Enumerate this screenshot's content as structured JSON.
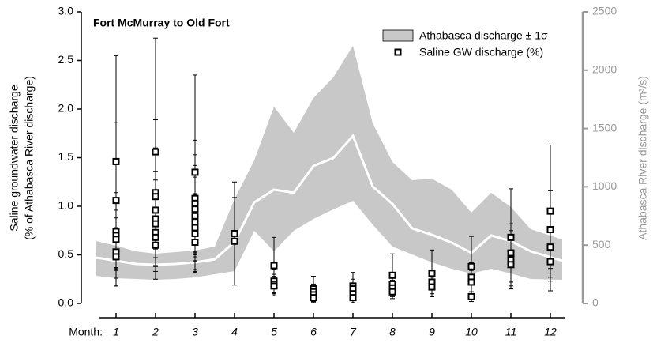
{
  "chart_data": {
    "type": "band-errorbar",
    "title": "Fort McMurray to Old Fort",
    "ylabel": [
      "Saline groundwater discharge",
      "(% of Athabasca River discharge)"
    ],
    "y2label": "Athabasca River discharge (m³/s)",
    "xlabel": "Month:",
    "xlim": [
      0.12,
      12.82
    ],
    "xticks": [
      1,
      2,
      3,
      4,
      5,
      6,
      7,
      8,
      9,
      10,
      11,
      12
    ],
    "ylim": [
      0,
      3.0
    ],
    "yticks": [
      {
        "value": 0,
        "label": "0.0"
      },
      0.5,
      {
        "value": 1,
        "label": "1.0"
      },
      1.5,
      {
        "value": 2,
        "label": "2.0"
      },
      2.5,
      {
        "value": 3,
        "label": "3.0"
      }
    ],
    "y2lim": [
      0,
      2500
    ],
    "y2ticks": [
      0,
      500,
      1000,
      1500,
      2000,
      2500
    ],
    "series": [
      {
        "name": "Athabasca discharge ± 1σ",
        "color": "#c8c8c8",
        "line_color": "#ffffff",
        "axis": "y2",
        "x": [
          0.5,
          1,
          1.5,
          2,
          2.5,
          3,
          3.5,
          4,
          4.5,
          5,
          5.5,
          6,
          6.5,
          7,
          7.5,
          8,
          8.5,
          9,
          9.5,
          10,
          10.5,
          11,
          11.5,
          12.3
        ],
        "values": [
          393,
          366,
          339,
          332,
          339,
          352,
          379,
          528,
          867,
          976,
          949,
          1179,
          1247,
          1436,
          1003,
          854,
          644,
          589,
          522,
          434,
          583,
          535,
          447,
          366
        ],
        "upper": [
          535,
          495,
          447,
          427,
          440,
          454,
          488,
          894,
          1226,
          1687,
          1463,
          1762,
          1938,
          2209,
          1545,
          1213,
          1057,
          1070,
          976,
          779,
          949,
          827,
          637,
          549
        ],
        "lower": [
          237,
          217,
          210,
          203,
          210,
          224,
          251,
          278,
          623,
          447,
          623,
          725,
          806,
          881,
          677,
          488,
          420,
          352,
          298,
          257,
          298,
          257,
          210,
          203
        ]
      },
      {
        "name": "Saline GW discharge (%)",
        "color": "#000000",
        "x": [
          1,
          1,
          1,
          1,
          1,
          1,
          1,
          2,
          2,
          2,
          2,
          2,
          2,
          2,
          2,
          2,
          3,
          3,
          3,
          3,
          3,
          3,
          3,
          3,
          3,
          4,
          4,
          5,
          5,
          5,
          5,
          6,
          6,
          6,
          6,
          7,
          7,
          7,
          7,
          8,
          8,
          8,
          8,
          9,
          9,
          9,
          10,
          10,
          10,
          10,
          11,
          11,
          11,
          11,
          12,
          12,
          12,
          12
        ],
        "values": [
          1.46,
          1.06,
          0.74,
          0.7,
          0.66,
          0.53,
          0.48,
          1.56,
          1.14,
          1.1,
          0.96,
          0.87,
          0.82,
          0.73,
          0.68,
          0.6,
          1.35,
          1.08,
          1.03,
          0.97,
          0.9,
          0.84,
          0.78,
          0.72,
          0.63,
          0.72,
          0.64,
          0.39,
          0.23,
          0.2,
          0.18,
          0.15,
          0.12,
          0.09,
          0.06,
          0.18,
          0.15,
          0.1,
          0.06,
          0.29,
          0.2,
          0.16,
          0.12,
          0.31,
          0.22,
          0.17,
          0.38,
          0.27,
          0.22,
          0.07,
          0.68,
          0.52,
          0.45,
          0.4,
          0.95,
          0.76,
          0.58,
          0.43
        ],
        "errors": [
          1.09,
          0.8,
          0.4,
          0.35,
          0.3,
          0.35,
          0.3,
          1.17,
          0.75,
          0.5,
          0.4,
          0.4,
          0.35,
          0.4,
          0.3,
          0.35,
          1.0,
          0.6,
          0.5,
          0.45,
          0.4,
          0.4,
          0.35,
          0.4,
          0.3,
          0.53,
          0.45,
          0.29,
          0.12,
          0.1,
          0.1,
          0.13,
          0.08,
          0.06,
          0.05,
          0.14,
          0.1,
          0.07,
          0.05,
          0.22,
          0.1,
          0.08,
          0.07,
          0.24,
          0.12,
          0.1,
          0.31,
          0.15,
          0.12,
          0.05,
          0.5,
          0.3,
          0.3,
          0.25,
          0.68,
          0.4,
          0.35,
          0.3
        ]
      }
    ]
  }
}
